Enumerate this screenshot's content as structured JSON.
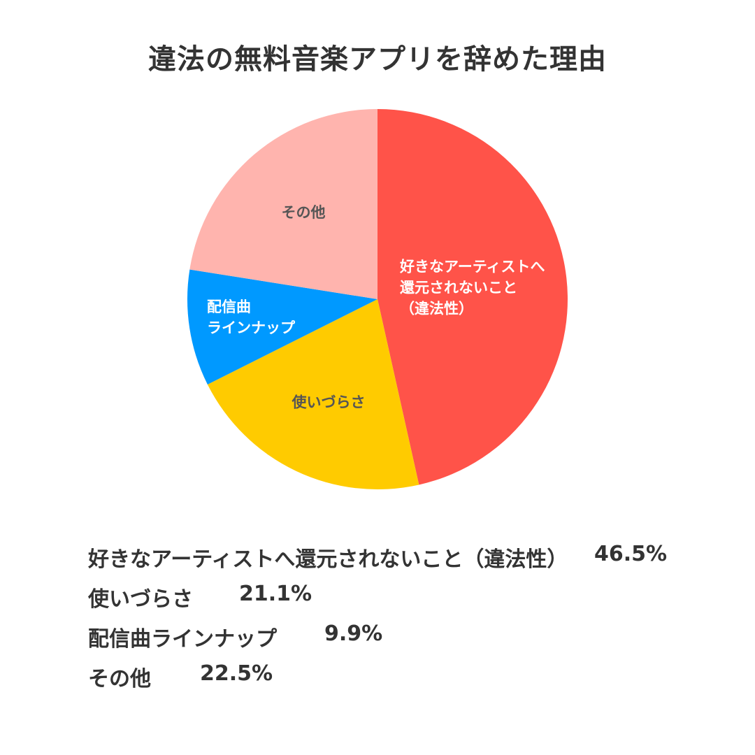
{
  "chart_data": {
    "type": "pie",
    "title": "違法の無料音楽アプリを辞めた理由",
    "slices": [
      {
        "label": "好きなアーティストへ還元されないこと（違法性）",
        "value": 46.5,
        "value_label": "46.5%",
        "color": "#ff5349",
        "inside_label": [
          "好きなアーティストへ",
          "還元されないこと",
          "（違法性）"
        ],
        "label_color": "#ffffff"
      },
      {
        "label": "使いづらさ",
        "value": 21.1,
        "value_label": "21.1%",
        "color": "#ffcb00",
        "inside_label": [
          "使いづらさ"
        ],
        "label_color": "#555555"
      },
      {
        "label": "配信曲ラインナップ",
        "value": 9.9,
        "value_label": "9.9%",
        "color": "#0099ff",
        "inside_label": [
          "配信曲",
          "ラインナップ"
        ],
        "label_color": "#ffffff"
      },
      {
        "label": "その他",
        "value": 22.5,
        "value_label": "22.5%",
        "color": "#ffb4ae",
        "inside_label": [
          "その他"
        ],
        "label_color": "#555555"
      }
    ],
    "start": "12 o'clock",
    "direction": "clockwise"
  }
}
